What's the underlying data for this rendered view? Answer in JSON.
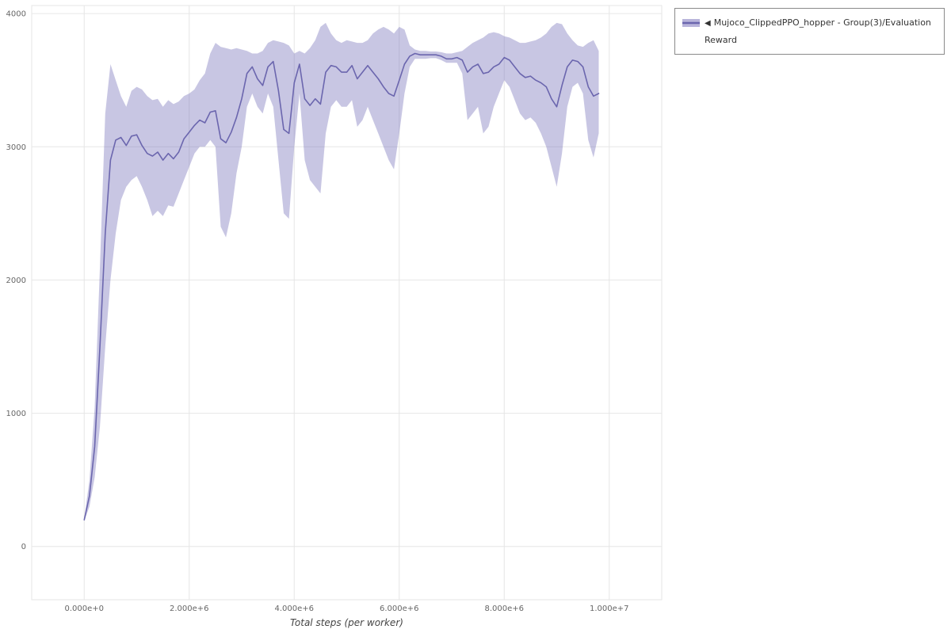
{
  "legend": {
    "marker": "◀",
    "items": [
      {
        "label": "Mujoco_ClippedPPO_hopper - Group(3)/Evaluation Reward"
      }
    ]
  },
  "colors": {
    "line": "#6b66ae",
    "band": "#7d77bd",
    "grid": "#e6e6e6",
    "tick_text": "#666666",
    "axis_label": "#444444",
    "legend_border": "#8a8a8a"
  },
  "chart_data": {
    "type": "line",
    "title": "",
    "xlabel": "Total steps (per worker)",
    "ylabel": "",
    "grid": true,
    "legend_position": "top-right",
    "xlim": [
      -1000000,
      11000000
    ],
    "ylim": [
      -400,
      4060
    ],
    "x_ticks": {
      "values": [
        0,
        2000000,
        4000000,
        6000000,
        8000000,
        10000000
      ],
      "labels": [
        "0.000e+0",
        "2.000e+6",
        "4.000e+6",
        "6.000e+6",
        "8.000e+6",
        "1.000e+7"
      ]
    },
    "y_ticks": {
      "values": [
        0,
        1000,
        2000,
        3000,
        4000
      ],
      "labels": [
        "0",
        "1000",
        "2000",
        "3000",
        "4000"
      ]
    },
    "series": [
      {
        "name": "Mujoco_ClippedPPO_hopper - Group(3)/Evaluation Reward",
        "line_color": "#6b66ae",
        "band_color": "#7d77bd",
        "band_opacity": 0.42,
        "x": [
          0,
          100000,
          200000,
          300000,
          400000,
          500000,
          600000,
          700000,
          800000,
          900000,
          1000000,
          1100000,
          1200000,
          1300000,
          1400000,
          1500000,
          1600000,
          1700000,
          1800000,
          1900000,
          2000000,
          2100000,
          2200000,
          2300000,
          2400000,
          2500000,
          2600000,
          2700000,
          2800000,
          2900000,
          3000000,
          3100000,
          3200000,
          3300000,
          3400000,
          3500000,
          3600000,
          3700000,
          3800000,
          3900000,
          4000000,
          4100000,
          4200000,
          4300000,
          4400000,
          4500000,
          4600000,
          4700000,
          4800000,
          4900000,
          5000000,
          5100000,
          5200000,
          5300000,
          5400000,
          5500000,
          5600000,
          5700000,
          5800000,
          5900000,
          6000000,
          6100000,
          6200000,
          6300000,
          6400000,
          6500000,
          6600000,
          6700000,
          6800000,
          6900000,
          7000000,
          7100000,
          7200000,
          7300000,
          7400000,
          7500000,
          7600000,
          7700000,
          7800000,
          7900000,
          8000000,
          8100000,
          8200000,
          8300000,
          8400000,
          8500000,
          8600000,
          8700000,
          8800000,
          8900000,
          9000000,
          9100000,
          9200000,
          9300000,
          9400000,
          9500000,
          9600000,
          9700000,
          9800000
        ],
        "mean": [
          200,
          380,
          750,
          1500,
          2350,
          2900,
          3050,
          3070,
          3010,
          3080,
          3090,
          3010,
          2950,
          2930,
          2960,
          2900,
          2950,
          2910,
          2960,
          3060,
          3110,
          3160,
          3200,
          3180,
          3260,
          3270,
          3060,
          3030,
          3110,
          3220,
          3360,
          3550,
          3600,
          3510,
          3460,
          3600,
          3640,
          3420,
          3130,
          3100,
          3480,
          3620,
          3360,
          3310,
          3360,
          3320,
          3560,
          3610,
          3600,
          3560,
          3560,
          3610,
          3510,
          3560,
          3610,
          3560,
          3510,
          3450,
          3400,
          3380,
          3500,
          3620,
          3680,
          3700,
          3690,
          3690,
          3690,
          3690,
          3680,
          3660,
          3660,
          3670,
          3650,
          3560,
          3600,
          3620,
          3550,
          3560,
          3600,
          3620,
          3670,
          3650,
          3600,
          3550,
          3520,
          3530,
          3500,
          3480,
          3450,
          3360,
          3300,
          3460,
          3600,
          3650,
          3640,
          3600,
          3450,
          3380,
          3400
        ],
        "lower": [
          190,
          300,
          520,
          900,
          1500,
          2000,
          2350,
          2600,
          2700,
          2750,
          2780,
          2700,
          2600,
          2480,
          2520,
          2480,
          2560,
          2550,
          2650,
          2750,
          2850,
          2950,
          3000,
          3000,
          3050,
          3000,
          2400,
          2320,
          2500,
          2800,
          3000,
          3300,
          3400,
          3300,
          3250,
          3400,
          3300,
          2900,
          2500,
          2460,
          3000,
          3400,
          2900,
          2750,
          2700,
          2650,
          3100,
          3300,
          3350,
          3300,
          3300,
          3350,
          3150,
          3200,
          3300,
          3200,
          3100,
          3000,
          2900,
          2830,
          3100,
          3400,
          3600,
          3660,
          3660,
          3660,
          3665,
          3665,
          3650,
          3630,
          3630,
          3630,
          3550,
          3200,
          3250,
          3300,
          3100,
          3150,
          3300,
          3400,
          3500,
          3450,
          3350,
          3250,
          3200,
          3220,
          3180,
          3100,
          3000,
          2850,
          2700,
          2950,
          3300,
          3450,
          3480,
          3400,
          3050,
          2920,
          3100
        ],
        "upper": [
          210,
          500,
          1050,
          2100,
          3250,
          3620,
          3500,
          3380,
          3300,
          3420,
          3450,
          3430,
          3380,
          3350,
          3360,
          3300,
          3350,
          3320,
          3340,
          3380,
          3400,
          3430,
          3500,
          3550,
          3700,
          3780,
          3750,
          3740,
          3730,
          3740,
          3730,
          3720,
          3700,
          3700,
          3720,
          3780,
          3800,
          3790,
          3780,
          3760,
          3700,
          3720,
          3700,
          3740,
          3800,
          3900,
          3930,
          3850,
          3800,
          3780,
          3800,
          3790,
          3780,
          3780,
          3800,
          3850,
          3880,
          3900,
          3880,
          3850,
          3900,
          3880,
          3760,
          3730,
          3720,
          3720,
          3715,
          3715,
          3710,
          3700,
          3700,
          3710,
          3720,
          3750,
          3780,
          3800,
          3820,
          3850,
          3860,
          3850,
          3830,
          3820,
          3800,
          3780,
          3780,
          3790,
          3800,
          3820,
          3850,
          3900,
          3930,
          3920,
          3850,
          3800,
          3760,
          3750,
          3780,
          3800,
          3720
        ]
      }
    ]
  }
}
